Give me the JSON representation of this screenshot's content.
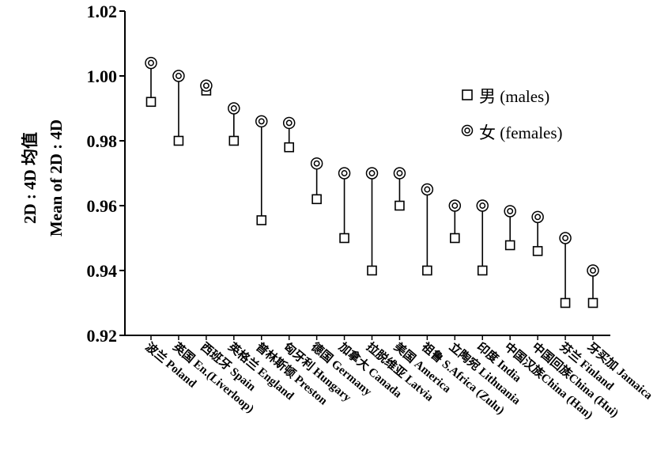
{
  "chart_data": {
    "type": "scatter",
    "title": "",
    "xlabel": "",
    "ylabel_line1": "2D : 4D 均值",
    "ylabel_line2": "Mean of 2D : 4D",
    "ylim": [
      0.92,
      1.02
    ],
    "yticks": [
      "0.92",
      "0.94",
      "0.96",
      "0.98",
      "1.00",
      "1.02"
    ],
    "categories": [
      "波兰 Poland",
      "英国 En.(Liverloop)",
      "西班牙 Spain",
      "英格兰 England",
      "普林斯顿 Preston",
      "匈牙利 Hungary",
      "德国 Germany",
      "加拿大 Canada",
      "拉脱维亚 Latvia",
      "美国 America",
      "祖鲁 S.Africa (Zulu)",
      "立陶宛 Lithuania",
      "印度 India",
      "中国汉族China (Han)",
      "中国回族China (Hui)",
      "芬兰 Finland",
      "牙买加 Jamaica"
    ],
    "series": [
      {
        "name": "男 (males)",
        "marker": "square",
        "values": [
          0.992,
          0.98,
          0.9955,
          0.98,
          0.9555,
          0.978,
          0.962,
          0.95,
          0.94,
          0.96,
          0.94,
          0.95,
          0.94,
          0.9478,
          0.946,
          0.93,
          0.93
        ]
      },
      {
        "name": "女 (females)",
        "marker": "double-circle",
        "values": [
          1.004,
          1.0,
          0.997,
          0.99,
          0.986,
          0.9855,
          0.973,
          0.97,
          0.97,
          0.97,
          0.965,
          0.96,
          0.96,
          0.9583,
          0.9565,
          0.95,
          0.94
        ]
      }
    ],
    "legend": {
      "position": "top-right",
      "males_label": "男 (males)",
      "females_label": "女 (females)"
    }
  }
}
